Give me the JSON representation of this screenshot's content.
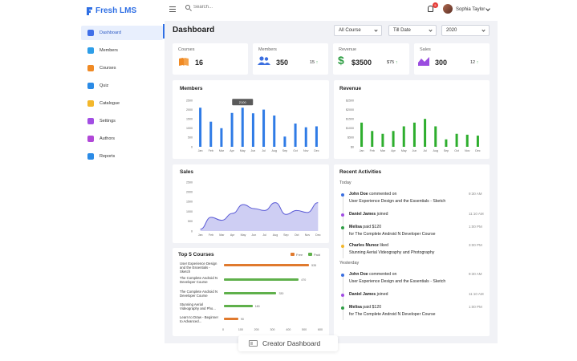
{
  "app": {
    "logo": "Fresh LMS",
    "brand_color": "#2f6fe4"
  },
  "topbar": {
    "search_placeholder": "Search...",
    "notifications": "5",
    "user_name": "Sophia Taylor"
  },
  "sidebar": {
    "items": [
      {
        "label": "Dashboard",
        "icon": "dashboard-icon",
        "color": "#3f6fe8",
        "active": true
      },
      {
        "label": "Members",
        "icon": "members-icon",
        "color": "#2e9ee8"
      },
      {
        "label": "Courses",
        "icon": "courses-icon",
        "color": "#f08a24"
      },
      {
        "label": "Quiz",
        "icon": "quiz-icon",
        "color": "#2b8be6"
      },
      {
        "label": "Catalogue",
        "icon": "catalogue-icon",
        "color": "#f3b72b"
      },
      {
        "label": "Settings",
        "icon": "settings-icon",
        "color": "#a24ee3"
      },
      {
        "label": "Authors",
        "icon": "authors-icon",
        "color": "#b148d8"
      },
      {
        "label": "Reports",
        "icon": "reports-icon",
        "color": "#2b8be6"
      }
    ]
  },
  "header": {
    "title": "Dashboard",
    "filter_course": "All Course",
    "filter_date": "Till Date",
    "filter_year": "2020"
  },
  "stats": {
    "courses": {
      "label": "Courses",
      "value": "16",
      "color": "#f08a24"
    },
    "members": {
      "label": "Members",
      "value": "350",
      "delta": "15",
      "color": "#3b6fe0"
    },
    "revenue": {
      "label": "Revenue",
      "value": "$3500",
      "delta": "$75",
      "color": "#2e9e44"
    },
    "sales": {
      "label": "Sales",
      "value": "300",
      "delta": "12",
      "color": "#9b4de0"
    }
  },
  "months": [
    "Jan",
    "Feb",
    "Mar",
    "Apr",
    "May",
    "Jun",
    "Jul",
    "Aug",
    "Sep",
    "Oct",
    "Nov",
    "Dec"
  ],
  "chart_data": [
    {
      "type": "bar",
      "title": "Members",
      "categories": [
        "Jan",
        "Feb",
        "Mar",
        "Apr",
        "May",
        "Jun",
        "Jul",
        "Aug",
        "Sep",
        "Oct",
        "Nov",
        "Dec"
      ],
      "values": [
        2100,
        1350,
        1000,
        1820,
        2100,
        1800,
        2000,
        1680,
        550,
        1250,
        1050,
        1100
      ],
      "yticks": [
        "2500",
        "2000",
        "1500",
        "1000",
        "500",
        "0"
      ],
      "ylim": [
        0,
        2500
      ],
      "tooltip": "2100",
      "color": "#2f7be6"
    },
    {
      "type": "bar",
      "title": "Revenue",
      "categories": [
        "Jan",
        "Feb",
        "Mar",
        "Apr",
        "May",
        "Jun",
        "Jul",
        "Aug",
        "Sep",
        "Oct",
        "Nov",
        "Dec"
      ],
      "values": [
        1300,
        850,
        700,
        850,
        1100,
        1300,
        1500,
        1100,
        400,
        700,
        650,
        600
      ],
      "yticks": [
        "$2500",
        "$2000",
        "$1500",
        "$1000",
        "$500",
        "$0"
      ],
      "ylim": [
        0,
        2500
      ],
      "color": "#2eae2e"
    },
    {
      "type": "area",
      "title": "Sales",
      "categories": [
        "Jan",
        "Feb",
        "Mar",
        "Apr",
        "May",
        "Jun",
        "Jul",
        "Aug",
        "Sep",
        "Oct",
        "Nov",
        "Dec"
      ],
      "values": [
        100,
        700,
        550,
        900,
        1350,
        1150,
        1050,
        1450,
        850,
        1050,
        950,
        1450
      ],
      "yticks": [
        "2500",
        "2000",
        "1500",
        "1000",
        "500",
        "0"
      ],
      "ylim": [
        0,
        2500
      ],
      "color": "#5b5bd6"
    },
    {
      "type": "bar",
      "title": "Top 5 Courses",
      "orientation": "horizontal",
      "legend": [
        "Free",
        "Paid"
      ],
      "legend_colors": [
        "#e07a2e",
        "#5fb04b"
      ],
      "categories": [
        "User Experience Design and the Essentials - Sketch",
        "The Complete Android N Developer Course",
        "The Complete Android N Developer Course",
        "Stunning Aerial Videography and Pho...",
        "Learn to Draw - Beginner to Advanced..."
      ],
      "values": [
        535,
        470,
        330,
        180,
        90
      ],
      "value_labels": [
        "535",
        "470",
        "330",
        "180",
        "90"
      ],
      "types": [
        "Free",
        "Paid",
        "Paid",
        "Paid",
        "Free"
      ],
      "xticks": [
        "0",
        "100",
        "200",
        "300",
        "400",
        "500",
        "600"
      ],
      "xlim": [
        0,
        600
      ]
    }
  ],
  "activities": {
    "title": "Recent Activities",
    "groups": [
      {
        "label": "Today",
        "items": [
          {
            "actor": "John Doe",
            "verb": " commented on",
            "object": "User Experience Design and the Essentials - Sketch",
            "time": "9:30 AM",
            "color": "#3b6fe0"
          },
          {
            "actor": "Daniel James",
            "verb": " joined",
            "object": "",
            "time": "11:10 AM",
            "color": "#a24ee3"
          },
          {
            "actor": "Melisa",
            "verb": " paid $120",
            "object": "for The Complete Android N Developer Course",
            "time": "1:00 PM",
            "color": "#2e9e44"
          },
          {
            "actor": "Charles Munoz",
            "verb": " liked",
            "object": "Stunning Aerial Videography and Photography",
            "time": "3:00 PM",
            "color": "#f3b72b"
          }
        ]
      },
      {
        "label": "Yesterday",
        "items": [
          {
            "actor": "John Doe",
            "verb": " commented on",
            "object": "User Experience Design and the Essentials - Sketch",
            "time": "9:30 AM",
            "color": "#3b6fe0"
          },
          {
            "actor": "Daniel James",
            "verb": " joined",
            "object": "",
            "time": "11:10 AM",
            "color": "#a24ee3"
          },
          {
            "actor": "Melisa",
            "verb": " paid $120",
            "object": "for The Complete Android N Developer Course",
            "time": "1:00 PM",
            "color": "#2e9e44"
          }
        ]
      }
    ]
  },
  "caption": "Creator Dashboard"
}
